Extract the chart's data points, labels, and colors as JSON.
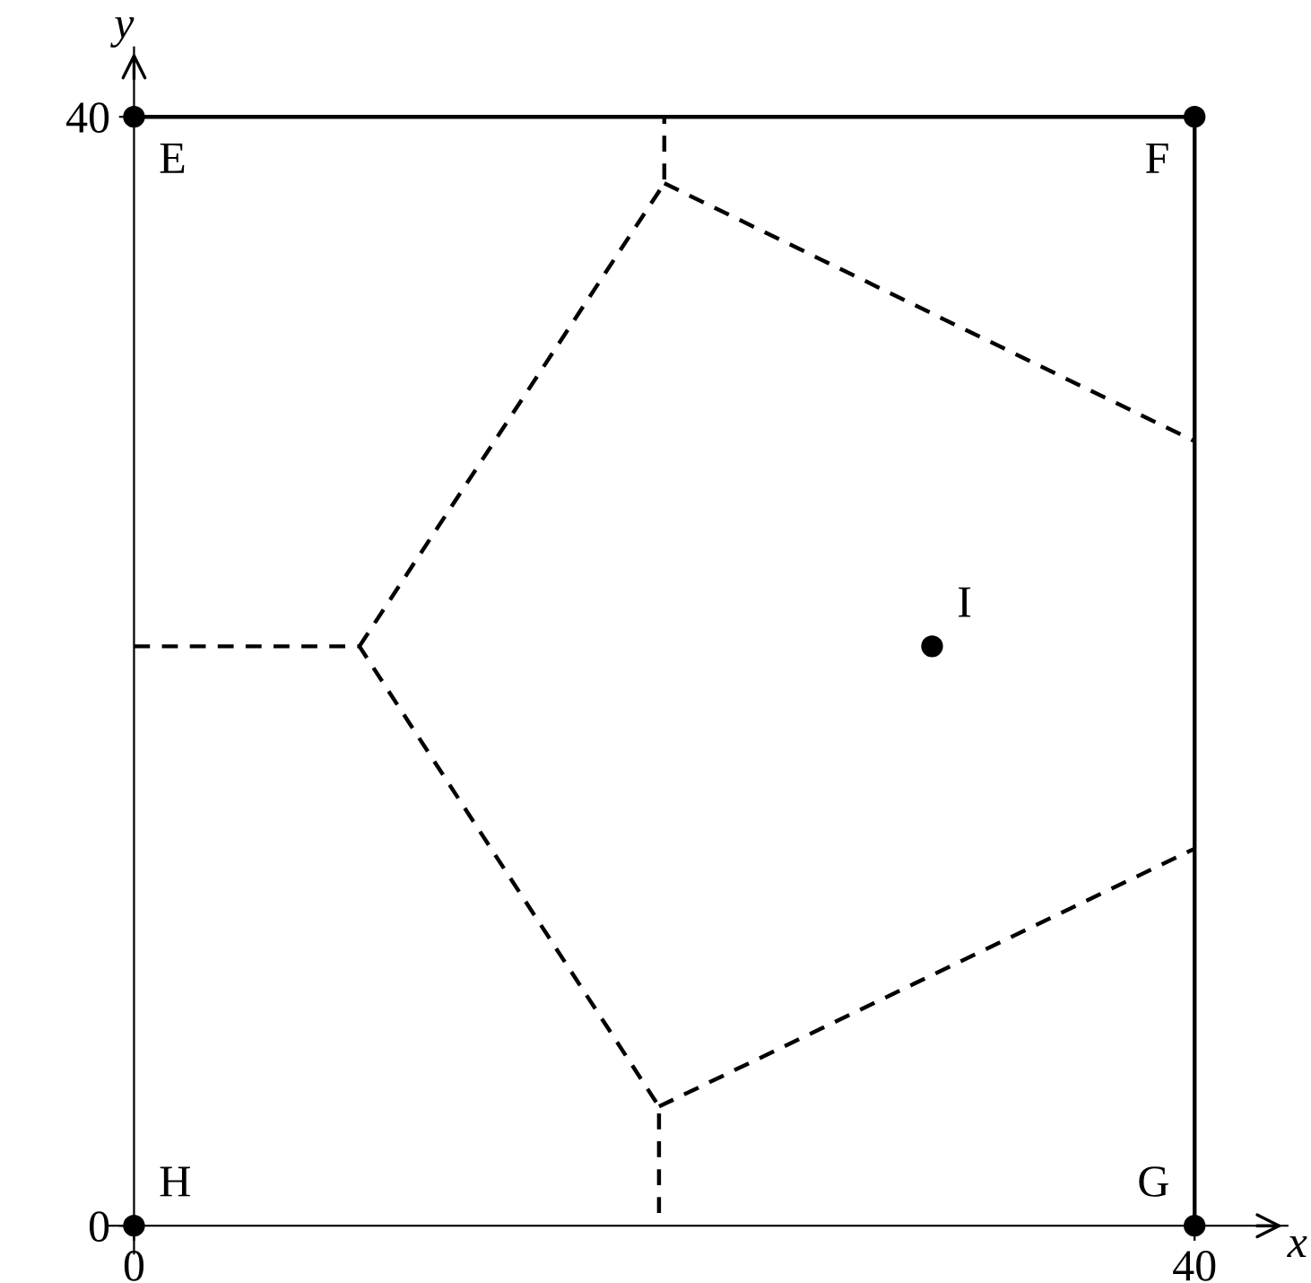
{
  "chart_data": {
    "type": "scatter",
    "xlabel": "x",
    "ylabel": "y",
    "xlim": [
      -1,
      43.5
    ],
    "ylim": [
      -1,
      42.5
    ],
    "xticks": [
      0,
      40
    ],
    "yticks": [
      0,
      40
    ],
    "grid": false,
    "series": [
      {
        "marker": "circle",
        "color": "#000000",
        "x": [
          0,
          40,
          40,
          0,
          30.1
        ],
        "values": [
          40,
          40,
          0,
          0,
          20.9
        ]
      },
      {
        "type": "line",
        "color": "#000000",
        "line_style": "solid",
        "x": [
          0,
          40,
          40
        ],
        "values": [
          40,
          40,
          0
        ]
      },
      {
        "type": "line",
        "color": "#000000",
        "line_style": "dashed",
        "x": [
          0,
          8.5,
          19.8,
          19.8
        ],
        "values": [
          20.9,
          20.9,
          4.3,
          0
        ]
      },
      {
        "type": "line",
        "color": "#000000",
        "line_style": "dashed",
        "x": [
          8.5,
          20,
          20
        ],
        "values": [
          20.9,
          37.6,
          40
        ]
      },
      {
        "type": "line",
        "color": "#000000",
        "line_style": "dashed",
        "x": [
          20,
          40
        ],
        "values": [
          37.6,
          28.3
        ]
      },
      {
        "type": "line",
        "color": "#000000",
        "line_style": "dashed",
        "x": [
          19.8,
          40
        ],
        "values": [
          4.3,
          13.6
        ]
      }
    ],
    "annotations": [
      {
        "text": "E",
        "x": 0,
        "y": 40
      },
      {
        "text": "F",
        "x": 40,
        "y": 40
      },
      {
        "text": "G",
        "x": 40,
        "y": 0
      },
      {
        "text": "H",
        "x": 0,
        "y": 0
      },
      {
        "text": "I",
        "x": 30.1,
        "y": 20.9
      }
    ]
  }
}
